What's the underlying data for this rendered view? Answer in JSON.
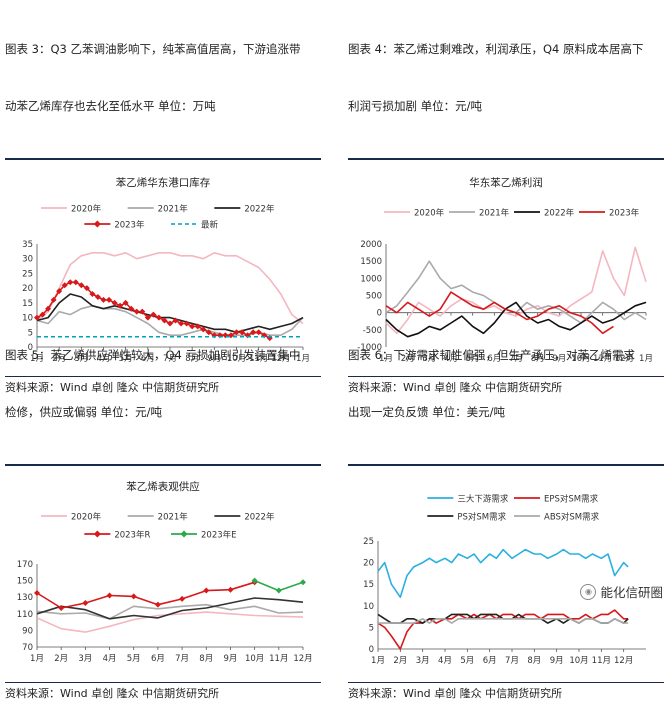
{
  "panels": [
    {
      "caption_lines": [
        "图表  3：Q3 乙苯调油影响下，纯苯高值居高，下游追涨带",
        "动苯乙烯库存也去化至低水平  单位：万吨"
      ],
      "source": "资料来源：Wind  卓创  隆众  中信期货研究所"
    },
    {
      "caption_lines": [
        "图表  4：苯乙烯过剩难改，利润承压，Q4 原料成本居高下",
        "利润亏损加剧  单位：元/吨"
      ],
      "source": "资料来源：Wind  卓创  隆众  中信期货研究所"
    },
    {
      "caption_lines": [
        "图表  5：苯乙烯供应弹性较大，Q4 亏损加剧引发装置集中",
        "检修，供应或偏弱  单位：元/吨"
      ],
      "source": "资料来源：Wind  卓创  隆众  中信期货研究所"
    },
    {
      "caption_lines": [
        "图表  6：下游需求韧性偏强，但生产承压，对苯乙烯需求",
        "出现一定负反馈  单位：美元/吨"
      ],
      "source": "资料来源：Wind  卓创  隆众  中信期货研究所"
    }
  ],
  "watermark": "能化信研圈",
  "chart_data": [
    {
      "type": "line",
      "title": "苯乙烯华东港口库存",
      "ylim": [
        0,
        35
      ],
      "yticks": [
        0,
        5,
        10,
        15,
        20,
        25,
        30,
        35
      ],
      "xlim": [
        0,
        12
      ],
      "categories": [
        "1月",
        "2月",
        "3月",
        "4月",
        "5月",
        "6月",
        "7月",
        "8月",
        "9月",
        "10月",
        "11月",
        "12月",
        "1月"
      ],
      "legend_position": "top",
      "series": [
        {
          "name": "2020年",
          "color": "#f4b7c0",
          "x": [
            0,
            0.5,
            1,
            1.5,
            2,
            2.5,
            3,
            3.5,
            4,
            4.5,
            5,
            5.5,
            6,
            6.5,
            7,
            7.5,
            8,
            8.5,
            9,
            9.5,
            10,
            10.5,
            11,
            11.5,
            12
          ],
          "values": [
            9,
            12,
            20,
            28,
            31,
            32,
            32,
            31,
            32,
            30,
            31,
            32,
            32,
            31,
            31,
            30,
            32,
            31,
            31,
            29,
            27,
            23,
            18,
            11,
            8
          ]
        },
        {
          "name": "2021年",
          "color": "#aaaaaa",
          "x": [
            0,
            0.5,
            1,
            1.5,
            2,
            2.5,
            3,
            3.5,
            4,
            4.5,
            5,
            5.5,
            6,
            6.5,
            7,
            7.5,
            8,
            8.5,
            9,
            9.5,
            10,
            10.5,
            11,
            11.5,
            12
          ],
          "values": [
            9,
            8,
            12,
            11,
            13,
            14,
            13,
            13,
            12,
            10,
            8,
            5,
            4,
            4,
            5,
            6,
            5,
            4,
            4,
            4,
            5,
            4,
            4,
            6,
            10
          ]
        },
        {
          "name": "2022年",
          "color": "#222222",
          "x": [
            0,
            0.5,
            1,
            1.5,
            2,
            2.5,
            3,
            3.5,
            4,
            4.5,
            5,
            5.5,
            6,
            6.5,
            7,
            7.5,
            8,
            8.5,
            9,
            9.5,
            10,
            10.5,
            11,
            11.5,
            12
          ],
          "values": [
            9,
            10,
            15,
            18,
            17,
            14,
            13,
            14,
            13,
            12,
            11,
            10,
            10,
            9,
            8,
            7,
            6,
            6,
            5,
            6,
            7,
            6,
            7,
            8,
            10
          ]
        },
        {
          "name": "2023年",
          "color": "#d7191c",
          "marker": "diamond",
          "x": [
            0,
            0.25,
            0.5,
            0.75,
            1,
            1.25,
            1.5,
            1.75,
            2,
            2.25,
            2.5,
            2.75,
            3,
            3.25,
            3.5,
            3.75,
            4,
            4.25,
            4.5,
            4.75,
            5,
            5.25,
            5.5,
            5.75,
            6,
            6.25,
            6.5,
            6.75,
            7,
            7.25,
            7.5,
            7.75,
            8,
            8.25,
            8.5,
            8.75,
            9,
            9.25,
            9.5,
            9.75,
            10,
            10.25,
            10.5
          ],
          "values": [
            10,
            11,
            13,
            16,
            19,
            21,
            22,
            22,
            21,
            20,
            18,
            17,
            16,
            16,
            15,
            14,
            15,
            13,
            12,
            12,
            10,
            11,
            10,
            9,
            8,
            9,
            8,
            8,
            7,
            7,
            6,
            5,
            4,
            4,
            4,
            4,
            5,
            5,
            4,
            5,
            5,
            4,
            3
          ]
        },
        {
          "name": "最新",
          "color": "#00a0c0",
          "dashed": true,
          "x": [
            0,
            12
          ],
          "values": [
            3.5,
            3.5
          ]
        }
      ]
    },
    {
      "type": "line",
      "title": "华东苯乙烯利润",
      "ylim": [
        -1000,
        2000
      ],
      "yticks": [
        -1000,
        -500,
        0,
        500,
        1000,
        1500,
        2000
      ],
      "xlim": [
        0,
        12
      ],
      "categories": [
        "1月",
        "2月",
        "3月",
        "4月",
        "5月",
        "6月",
        "7月",
        "8月",
        "9月",
        "10月",
        "11月",
        "12月",
        "1月"
      ],
      "legend_position": "top",
      "series": [
        {
          "name": "2020年",
          "color": "#f4b7c0",
          "x": [
            0,
            0.5,
            1,
            1.5,
            2,
            2.5,
            3,
            3.5,
            4,
            4.5,
            5,
            5.5,
            6,
            6.5,
            7,
            7.5,
            8,
            8.5,
            9,
            9.5,
            10,
            10.5,
            11,
            11.5,
            12
          ],
          "values": [
            -300,
            -600,
            -200,
            300,
            100,
            -100,
            200,
            400,
            300,
            100,
            200,
            0,
            -100,
            100,
            200,
            0,
            -100,
            200,
            400,
            600,
            1800,
            1000,
            500,
            1900,
            900
          ]
        },
        {
          "name": "2021年",
          "color": "#aaaaaa",
          "x": [
            0,
            0.5,
            1,
            1.5,
            2,
            2.5,
            3,
            3.5,
            4,
            4.5,
            5,
            5.5,
            6,
            6.5,
            7,
            7.5,
            8,
            8.5,
            9,
            9.5,
            10,
            10.5,
            11,
            11.5,
            12
          ],
          "values": [
            0,
            200,
            600,
            1000,
            1500,
            1000,
            700,
            800,
            600,
            500,
            300,
            100,
            0,
            300,
            100,
            200,
            100,
            -100,
            -300,
            0,
            300,
            100,
            -200,
            0,
            -200
          ]
        },
        {
          "name": "2022年",
          "color": "#111111",
          "x": [
            0,
            0.5,
            1,
            1.5,
            2,
            2.5,
            3,
            3.5,
            4,
            4.5,
            5,
            5.5,
            6,
            6.5,
            7,
            7.5,
            8,
            8.5,
            9,
            9.5,
            10,
            10.5,
            11,
            11.5,
            12
          ],
          "values": [
            -200,
            -500,
            -700,
            -600,
            -400,
            -500,
            -300,
            -100,
            -400,
            -600,
            -300,
            100,
            300,
            -100,
            -300,
            -200,
            -400,
            -500,
            -300,
            -100,
            -300,
            -200,
            0,
            200,
            300
          ]
        },
        {
          "name": "2023年",
          "color": "#d7191c",
          "x": [
            0,
            0.5,
            1,
            1.5,
            2,
            2.5,
            3,
            3.5,
            4,
            4.5,
            5,
            5.5,
            6,
            6.5,
            7,
            7.5,
            8,
            8.5,
            9,
            9.5,
            10,
            10.5
          ],
          "values": [
            200,
            0,
            300,
            100,
            -100,
            100,
            600,
            400,
            200,
            100,
            300,
            100,
            0,
            -200,
            -100,
            100,
            200,
            0,
            -100,
            -300,
            -600,
            -400
          ]
        }
      ]
    },
    {
      "type": "line",
      "title": "苯乙烯表观供应",
      "ylim": [
        70,
        170
      ],
      "yticks": [
        70,
        90,
        110,
        130,
        150,
        170
      ],
      "xlim": [
        0,
        11
      ],
      "categories": [
        "1月",
        "2月",
        "3月",
        "4月",
        "5月",
        "6月",
        "7月",
        "8月",
        "9月",
        "10月",
        "11月",
        "12月"
      ],
      "legend_position": "top",
      "series": [
        {
          "name": "2020年",
          "color": "#f4b7c0",
          "x": [
            0,
            1,
            2,
            3,
            4,
            5,
            6,
            7,
            8,
            9,
            10,
            11
          ],
          "values": [
            105,
            92,
            88,
            95,
            103,
            108,
            110,
            112,
            110,
            108,
            107,
            106
          ]
        },
        {
          "name": "2021年",
          "color": "#aaaaaa",
          "x": [
            0,
            1,
            2,
            3,
            4,
            5,
            6,
            7,
            8,
            9,
            10,
            11
          ],
          "values": [
            113,
            110,
            111,
            104,
            119,
            116,
            119,
            121,
            115,
            119,
            111,
            112
          ]
        },
        {
          "name": "2022年",
          "color": "#333333",
          "x": [
            0,
            1,
            2,
            3,
            4,
            5,
            6,
            7,
            8,
            9,
            10,
            11
          ],
          "values": [
            110,
            119,
            115,
            104,
            108,
            105,
            114,
            117,
            123,
            129,
            127,
            124
          ]
        },
        {
          "name": "2023年R",
          "color": "#d7191c",
          "marker": "diamond",
          "x": [
            0,
            1,
            2,
            3,
            4,
            5,
            6,
            7,
            8,
            9
          ],
          "values": [
            135,
            117,
            123,
            132,
            131,
            121,
            128,
            138,
            139,
            148
          ]
        },
        {
          "name": "2023年E",
          "color": "#2ea84a",
          "marker": "diamond",
          "x": [
            9,
            10,
            11
          ],
          "values": [
            150,
            138,
            148
          ]
        }
      ]
    },
    {
      "type": "line",
      "title": "",
      "ylim": [
        0,
        25
      ],
      "yticks": [
        0,
        5,
        10,
        15,
        20,
        25
      ],
      "xlim": [
        0,
        12
      ],
      "categories": [
        "1月",
        "2月",
        "3月",
        "4月",
        "5月",
        "6月",
        "7月",
        "8月",
        "9月",
        "10月",
        "11月",
        "12月"
      ],
      "legend_position": "top",
      "series": [
        {
          "name": "三大下游需求",
          "color": "#2bb0e0",
          "x": [
            0,
            0.3,
            0.6,
            1,
            1.3,
            1.6,
            2,
            2.3,
            2.6,
            3,
            3.3,
            3.6,
            4,
            4.3,
            4.6,
            5,
            5.3,
            5.6,
            6,
            6.3,
            6.6,
            7,
            7.3,
            7.6,
            8,
            8.3,
            8.6,
            9,
            9.3,
            9.6,
            10,
            10.3,
            10.6,
            11,
            11.2
          ],
          "values": [
            18,
            20,
            15,
            12,
            17,
            19,
            20,
            21,
            20,
            21,
            20,
            22,
            21,
            22,
            20,
            22,
            21,
            23,
            21,
            22,
            23,
            22,
            22,
            21,
            22,
            23,
            22,
            22,
            21,
            22,
            21,
            22,
            17,
            20,
            19
          ]
        },
        {
          "name": "EPS对SM需求",
          "color": "#d7191c",
          "x": [
            0,
            0.3,
            0.6,
            1,
            1.3,
            1.6,
            2,
            2.3,
            2.6,
            3,
            3.3,
            3.6,
            4,
            4.3,
            4.6,
            5,
            5.3,
            5.6,
            6,
            6.3,
            6.6,
            7,
            7.3,
            7.6,
            8,
            8.3,
            8.6,
            9,
            9.3,
            9.6,
            10,
            10.3,
            10.6,
            11,
            11.2
          ],
          "values": [
            6,
            5,
            3,
            0,
            4,
            6,
            6,
            7,
            6,
            7,
            7,
            8,
            7,
            8,
            7,
            8,
            7,
            8,
            8,
            7,
            8,
            8,
            7,
            8,
            8,
            8,
            7,
            7,
            8,
            7,
            8,
            8,
            9,
            7,
            7
          ]
        },
        {
          "name": "PS对SM需求",
          "color": "#222222",
          "x": [
            0,
            0.3,
            0.6,
            1,
            1.3,
            1.6,
            2,
            2.3,
            2.6,
            3,
            3.3,
            3.6,
            4,
            4.3,
            4.6,
            5,
            5.3,
            5.6,
            6,
            6.3,
            6.6,
            7,
            7.3,
            7.6,
            8,
            8.3,
            8.6,
            9,
            9.3,
            9.6,
            10,
            10.3,
            10.6,
            11,
            11.2
          ],
          "values": [
            8,
            7,
            6,
            6,
            7,
            7,
            6,
            7,
            7,
            7,
            8,
            8,
            8,
            7,
            8,
            8,
            8,
            7,
            7,
            8,
            7,
            7,
            7,
            6,
            7,
            6,
            7,
            6,
            7,
            7,
            6,
            6,
            7,
            6,
            7
          ]
        },
        {
          "name": "ABS对SM需求",
          "color": "#aaaaaa",
          "x": [
            0,
            0.3,
            0.6,
            1,
            1.3,
            1.6,
            2,
            2.3,
            2.6,
            3,
            3.3,
            3.6,
            4,
            4.3,
            4.6,
            5,
            5.3,
            5.6,
            6,
            6.3,
            6.6,
            7,
            7.3,
            7.6,
            8,
            8.3,
            8.6,
            9,
            9.3,
            9.6,
            10,
            10.3,
            10.6,
            11,
            11.2
          ],
          "values": [
            6,
            6,
            6,
            6,
            6,
            6,
            7,
            6,
            7,
            7,
            6,
            7,
            7,
            7,
            7,
            7,
            7,
            7,
            7,
            7,
            7,
            7,
            7,
            7,
            7,
            7,
            7,
            6,
            7,
            7,
            6,
            6,
            7,
            6,
            6
          ]
        }
      ]
    }
  ]
}
